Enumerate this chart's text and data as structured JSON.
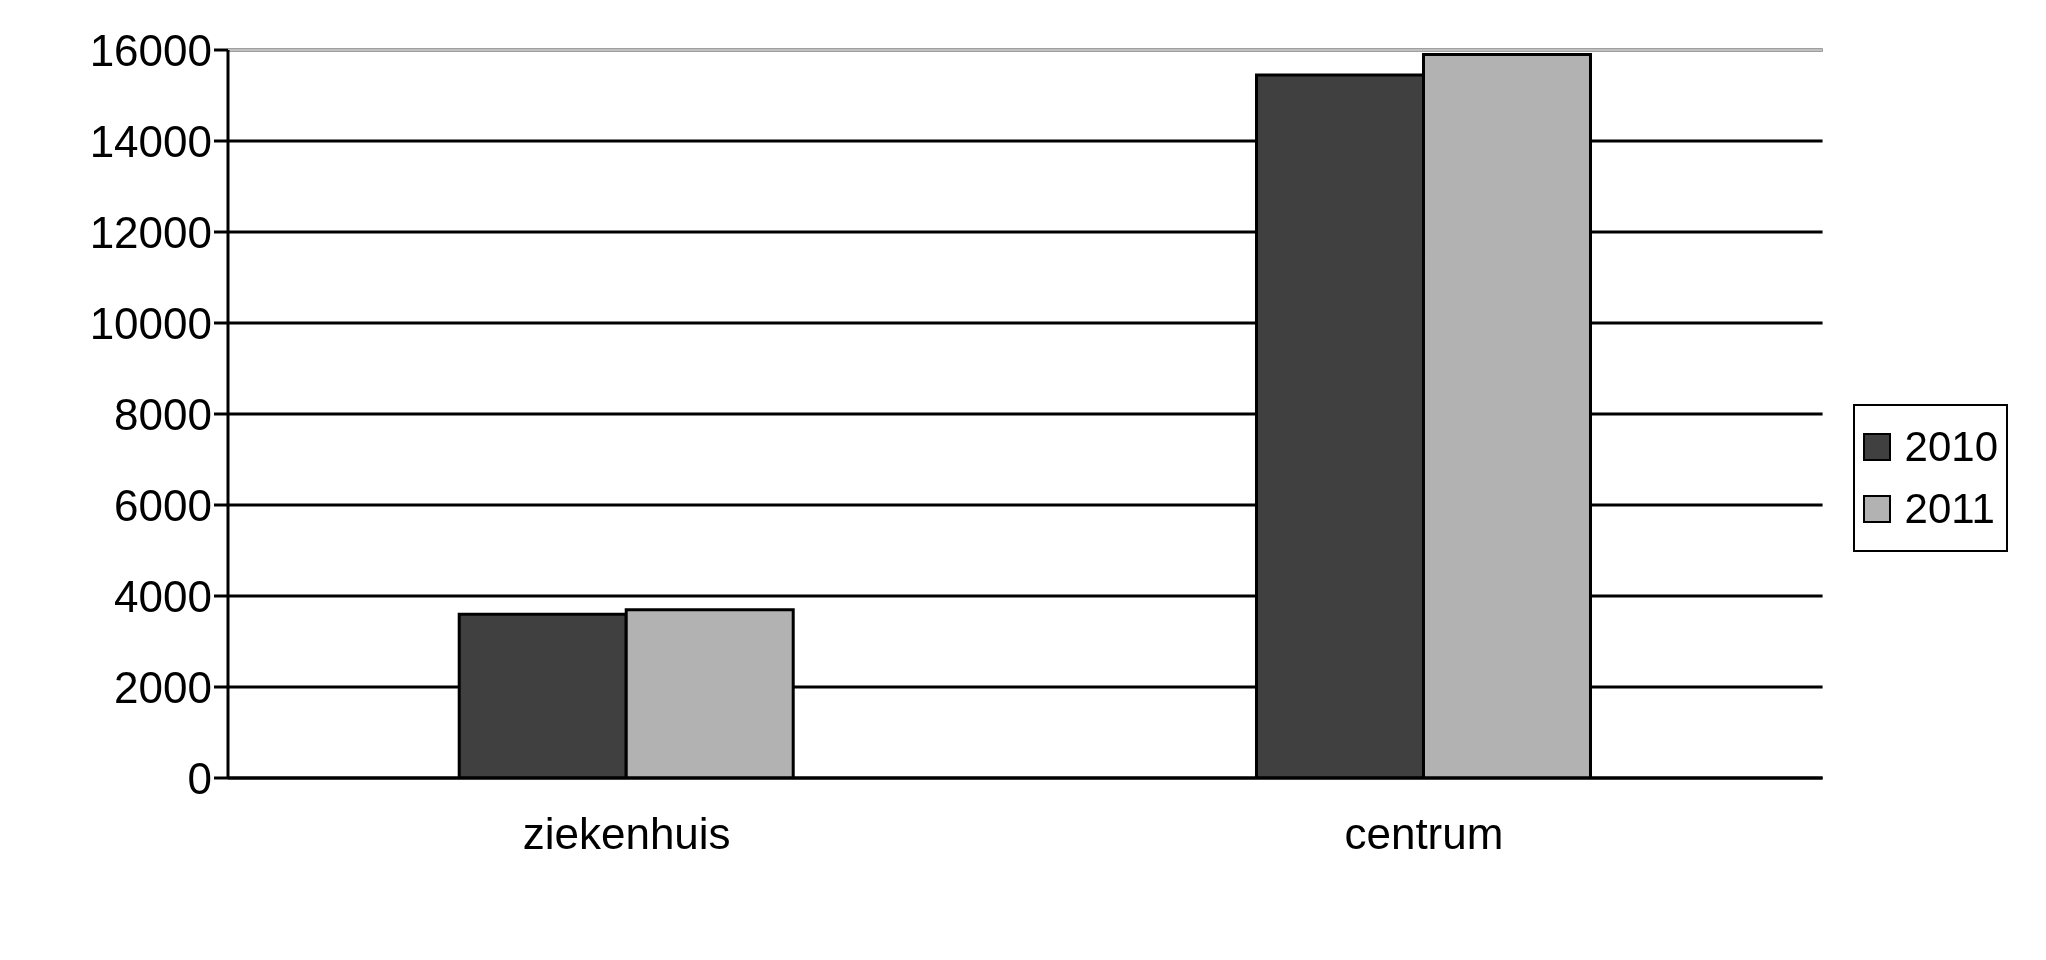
{
  "chart_data": {
    "type": "bar",
    "categories": [
      "ziekenhuis",
      "centrum"
    ],
    "series": [
      {
        "name": "2010",
        "color": "#404040",
        "values": [
          3600,
          15450
        ]
      },
      {
        "name": "2011",
        "color": "#b2b2b2",
        "values": [
          3700,
          15900
        ]
      }
    ],
    "ylim": [
      0,
      16000
    ],
    "yticks": [
      0,
      2000,
      4000,
      6000,
      8000,
      10000,
      12000,
      14000,
      16000
    ],
    "grid": "y",
    "legend": "right"
  }
}
